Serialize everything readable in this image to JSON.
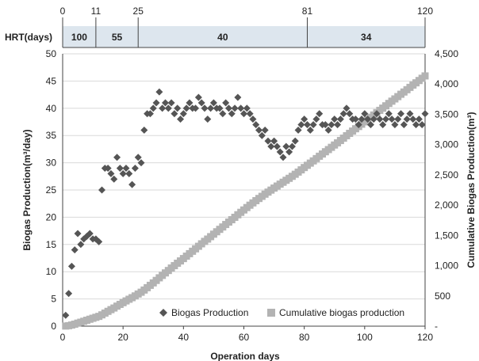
{
  "chart_data": {
    "type": "scatter",
    "xlabel": "Operation days",
    "xlim": [
      0,
      120
    ],
    "x_ticks": [
      "0",
      "20",
      "40",
      "60",
      "80",
      "100",
      "120"
    ],
    "ylabel": "Biogas Production(m³/day)",
    "ylim": [
      0,
      50
    ],
    "y_ticks": [
      "0",
      "5",
      "10",
      "15",
      "20",
      "25",
      "30",
      "35",
      "40",
      "45",
      "50"
    ],
    "y2label": "Cumulative Biogas Production(m³)",
    "y2lim": [
      0,
      4500
    ],
    "y2_ticks": [
      "-",
      "500",
      "1,000",
      "1,500",
      "2,000",
      "2,500",
      "3,000",
      "3,500",
      "4,000",
      "4,500"
    ],
    "legend_position": "bottom-right",
    "hrt": {
      "label": "HRT(days)",
      "boundaries": [
        0,
        11,
        25,
        81,
        120
      ],
      "boundary_labels": [
        "0",
        "11",
        "25",
        "81",
        "120"
      ],
      "segments": [
        {
          "start": 0,
          "end": 11,
          "value": "100"
        },
        {
          "start": 11,
          "end": 25,
          "value": "55"
        },
        {
          "start": 25,
          "end": 81,
          "value": "40"
        },
        {
          "start": 81,
          "end": 120,
          "value": "34"
        }
      ]
    },
    "series": [
      {
        "name": "Biogas Production",
        "axis": "left",
        "color": "#555555",
        "marker": "diamond",
        "x": [
          1,
          2,
          3,
          4,
          5,
          6,
          7,
          8,
          9,
          10,
          11,
          12,
          13,
          14,
          15,
          16,
          17,
          18,
          19,
          20,
          21,
          22,
          23,
          24,
          25,
          26,
          27,
          28,
          29,
          30,
          31,
          32,
          33,
          34,
          35,
          36,
          37,
          38,
          39,
          40,
          41,
          42,
          43,
          44,
          45,
          46,
          47,
          48,
          49,
          50,
          51,
          52,
          53,
          54,
          55,
          56,
          57,
          58,
          59,
          60,
          61,
          62,
          63,
          64,
          65,
          66,
          67,
          68,
          69,
          70,
          71,
          72,
          73,
          74,
          75,
          76,
          77,
          78,
          79,
          80,
          81,
          82,
          83,
          84,
          85,
          86,
          87,
          88,
          89,
          90,
          91,
          92,
          93,
          94,
          95,
          96,
          97,
          98,
          99,
          100,
          101,
          102,
          103,
          104,
          105,
          106,
          107,
          108,
          109,
          110,
          111,
          112,
          113,
          114,
          115,
          116,
          117,
          118,
          119,
          120
        ],
        "y": [
          2,
          6,
          11,
          14,
          17,
          15,
          16,
          16.5,
          17,
          16,
          16,
          15.5,
          25,
          29,
          29,
          28,
          27,
          31,
          29,
          28,
          29,
          28,
          26,
          29,
          31,
          30,
          36,
          39,
          39,
          40,
          41,
          43,
          40,
          41,
          40,
          41,
          39,
          40,
          38,
          39,
          40,
          41,
          40,
          40,
          42,
          41,
          40,
          38,
          40,
          41,
          40,
          40,
          39,
          41,
          40,
          39,
          40,
          42,
          40,
          39,
          40,
          39,
          38,
          37,
          36,
          35,
          36,
          34,
          33,
          34,
          33,
          32,
          31,
          33,
          32,
          33,
          34,
          36,
          37,
          38,
          37,
          36,
          37,
          38,
          39,
          37,
          37,
          36,
          37,
          38,
          37,
          38,
          39,
          40,
          39,
          38,
          38,
          37,
          38,
          39,
          38,
          37,
          38,
          39,
          38,
          37,
          38,
          39,
          38,
          37,
          38,
          39,
          37,
          38,
          39,
          38,
          37,
          38,
          37,
          39
        ]
      },
      {
        "name": "Cumulative biogas production",
        "axis": "right",
        "color": "#b3b3b3",
        "marker": "square"
      }
    ]
  }
}
